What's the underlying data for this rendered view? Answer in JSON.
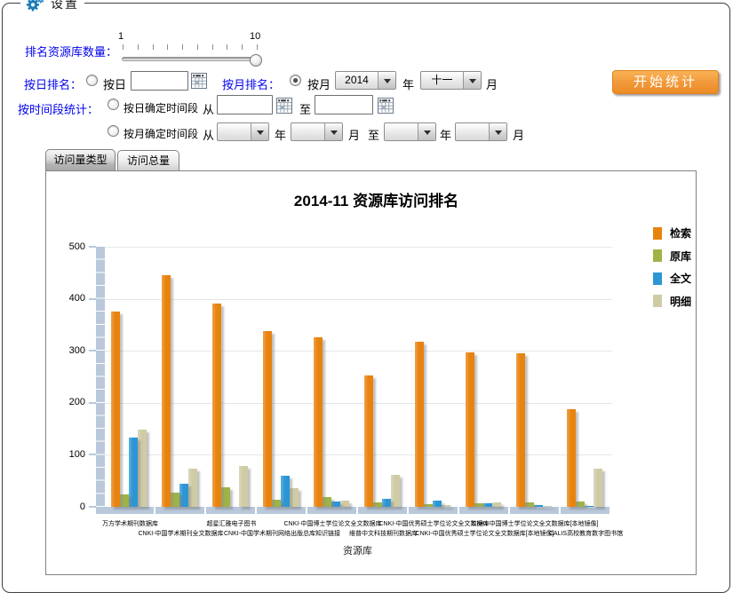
{
  "window": {
    "legend": "设置"
  },
  "slider": {
    "label": "排名资源库数量：",
    "min_label": "1",
    "max_label": "10",
    "ticks": 10,
    "value": 10
  },
  "daily_rank": {
    "label": "按日排名：",
    "radio_label": "按日",
    "checked": false,
    "input_value": ""
  },
  "monthly_rank": {
    "label": "按月排名：",
    "radio_label": "按月",
    "checked": true,
    "year_value": "2014",
    "year_suffix": "年",
    "month_value": "十一",
    "month_suffix": "月"
  },
  "period_stats": {
    "label": "按时间段统计：",
    "by_day": {
      "radio_label": "按日确定时间段",
      "checked": false,
      "from_label": "从",
      "from_value": "",
      "to_label": "至",
      "to_value": ""
    },
    "by_month": {
      "radio_label": "按月确定时间段",
      "checked": false,
      "from_label": "从",
      "to_label": "至",
      "year_suffix": "年",
      "month_suffix": "月",
      "from_year": "",
      "from_month": "",
      "to_year": "",
      "to_month": ""
    }
  },
  "start_button": {
    "label": "开始统计"
  },
  "tabs": [
    {
      "label": "访问量类型",
      "active": true
    },
    {
      "label": "访问总量",
      "active": false
    }
  ],
  "chart_data": {
    "type": "bar",
    "title": "2014-11 资源库访问排名",
    "xlabel": "资源库",
    "ylabel": "",
    "ylim": [
      0,
      500
    ],
    "ytick_step": 100,
    "grid": true,
    "legend_position": "right",
    "categories": [
      "万方学术期刊数据库",
      "CNKI-中国学术期刊全文数据库",
      "超星汇雅电子图书",
      "CNKI-中国学术期刊网络出版总库知识链接",
      "CNKI-中国博士学位论文全文数据库",
      "维普中文科技期刊数据库",
      "CNKI-中国优秀硕士学位论文全文数据库",
      "CNKI-中国优秀硕士学位论文全文数据库[本地镜像]",
      "CNKI-中国博士学位论文全文数据库[本地镜像]",
      "CALIS高校教育数字图书馆"
    ],
    "series": [
      {
        "name": "检索",
        "color": "#e8830f",
        "values": [
          375,
          445,
          390,
          338,
          326,
          252,
          318,
          297,
          296,
          187
        ]
      },
      {
        "name": "原库",
        "color": "#9fb347",
        "values": [
          24,
          28,
          38,
          14,
          18,
          9,
          5,
          6,
          8,
          10
        ]
      },
      {
        "name": "全文",
        "color": "#2c96d4",
        "values": [
          133,
          45,
          0,
          59,
          10,
          15,
          12,
          7,
          3,
          2
        ]
      },
      {
        "name": "明细",
        "color": "#cfcba5",
        "values": [
          148,
          73,
          78,
          36,
          12,
          61,
          4,
          8,
          2,
          73
        ]
      }
    ]
  }
}
